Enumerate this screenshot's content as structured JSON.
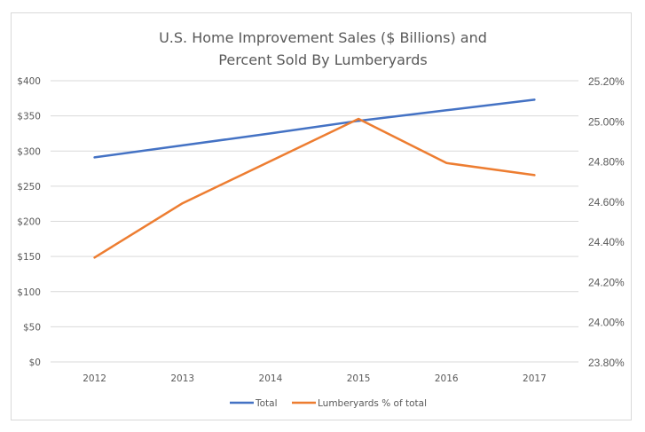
{
  "chart_data": {
    "type": "line",
    "title": [
      "U.S. Home Improvement Sales ($ Billions) and",
      "Percent Sold By Lumberyards"
    ],
    "categories": [
      "2012",
      "2013",
      "2014",
      "2015",
      "2016",
      "2017"
    ],
    "xlabel": "",
    "ylabel": "",
    "y_left": {
      "ylim": [
        0,
        400
      ],
      "step": 50,
      "tick_labels": [
        "$0",
        "$50",
        "$100",
        "$150",
        "$200",
        "$250",
        "$300",
        "$350",
        "$400"
      ]
    },
    "y_right": {
      "ylim": [
        23.8,
        25.2
      ],
      "step": 0.2,
      "tick_labels": [
        "23.80%",
        "24.00%",
        "24.20%",
        "24.40%",
        "24.60%",
        "24.80%",
        "25.00%",
        "25.20%"
      ]
    },
    "grid": true,
    "legend_position": "bottom",
    "series": [
      {
        "name": "Total",
        "axis": "left",
        "color": "#4472c4",
        "values": [
          291,
          308,
          325,
          343,
          358,
          373
        ]
      },
      {
        "name": "Lumberyards % of total",
        "axis": "right",
        "color": "#ed7d31",
        "values": [
          24.32,
          24.59,
          24.8,
          25.01,
          24.79,
          24.73
        ]
      }
    ]
  }
}
